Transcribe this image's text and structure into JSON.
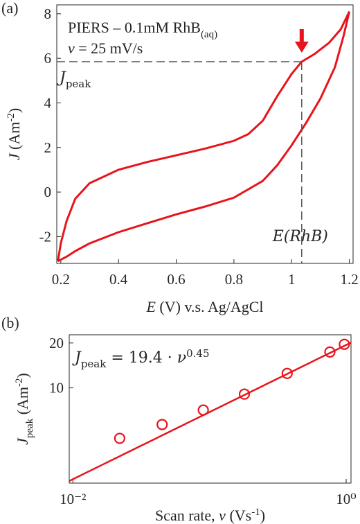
{
  "chart_data": [
    {
      "type": "line",
      "panel_label": "(a)",
      "color": "#e8141b",
      "x": [
        0.19,
        0.2,
        0.22,
        0.25,
        0.3,
        0.4,
        0.5,
        0.6,
        0.7,
        0.8,
        0.85,
        0.9,
        0.95,
        1.0,
        1.035,
        1.08,
        1.13,
        1.17,
        1.2,
        1.18,
        1.15,
        1.1,
        1.05,
        1.0,
        0.95,
        0.9,
        0.8,
        0.7,
        0.6,
        0.5,
        0.4,
        0.3,
        0.25,
        0.22,
        0.19
      ],
      "values": [
        -3.1,
        -2.3,
        -1.3,
        -0.3,
        0.4,
        1.0,
        1.35,
        1.65,
        1.95,
        2.3,
        2.6,
        3.2,
        4.3,
        5.3,
        5.85,
        6.2,
        6.7,
        7.3,
        8.1,
        7.0,
        5.6,
        4.2,
        3.1,
        2.1,
        1.2,
        0.5,
        -0.25,
        -0.65,
        -1.0,
        -1.4,
        -1.8,
        -2.3,
        -2.65,
        -2.9,
        -3.1
      ],
      "xlim": [
        0.186,
        1.213
      ],
      "ylim": [
        -3.2,
        8.4
      ],
      "xticks": [
        0.2,
        0.4,
        0.6,
        0.8,
        1,
        1.2
      ],
      "yticks": [
        -2,
        0,
        2,
        4,
        6,
        8
      ],
      "x_label": {
        "italic": "E",
        "text": " (V) v.s. Ag/AgCl"
      },
      "y_label": {
        "italic": "J",
        "text": " (Am",
        "sup": "-2",
        "close": ")"
      },
      "legend": {
        "line1": "PIERS – 0.1mM RhB",
        "line1_sub": "(aq)",
        "line2_italic": "ν",
        "line2": " = 25 mV/s"
      },
      "peak": {
        "x": 1.035,
        "y": 5.85
      },
      "peak_label": {
        "italic": "J",
        "sub": "peak"
      },
      "e_label": "E(RhB)"
    },
    {
      "type": "scatter",
      "panel_label": "(b)",
      "color": "#e8141b",
      "log_x": true,
      "log_y": true,
      "x": [
        0.022,
        0.045,
        0.09,
        0.18,
        0.37,
        0.76,
        0.97
      ],
      "values": [
        4.59,
        5.68,
        7.1,
        9.08,
        12.5,
        17.4,
        19.6
      ],
      "xlim": [
        0.0094,
        1.085
      ],
      "ylim": [
        2.3,
        22.7
      ],
      "xticks": [
        {
          "value": 0.01,
          "label": "10⁻²"
        },
        {
          "value": 1,
          "label": "10⁰"
        }
      ],
      "yticks": [
        10,
        20
      ],
      "fit": {
        "coef": 19.4,
        "exponent": 0.45
      },
      "equation": {
        "lhs": "J",
        "sub": "peak",
        "mid": " = 19.4 · ",
        "var": "ν",
        "sup": "0.45"
      },
      "x_label": {
        "text": "Scan rate, ",
        "italic": "ν",
        "unit": " (Vs",
        "sup": "-1",
        "close": ")"
      },
      "y_label": {
        "italic": "J",
        "sub": "peak",
        "text": " (Am",
        "sup": "-2",
        "close": ")"
      }
    }
  ]
}
